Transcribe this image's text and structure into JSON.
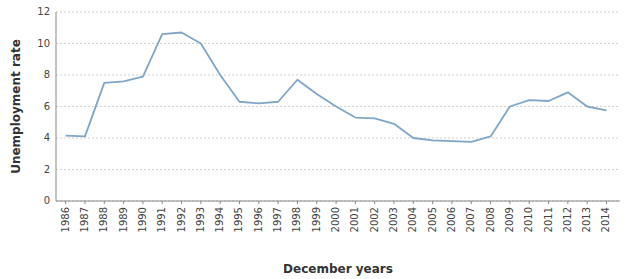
{
  "chart_data": {
    "type": "line",
    "xlabel": "December years",
    "ylabel": "Unemployment rate",
    "x": [
      1986,
      1987,
      1988,
      1989,
      1990,
      1991,
      1992,
      1993,
      1994,
      1995,
      1996,
      1997,
      1998,
      1999,
      2000,
      2001,
      2002,
      2003,
      2004,
      2005,
      2006,
      2007,
      2008,
      2009,
      2010,
      2011,
      2012,
      2013,
      2014
    ],
    "values": [
      4.15,
      4.1,
      7.5,
      7.6,
      7.9,
      10.6,
      10.7,
      10.0,
      8.0,
      6.3,
      6.2,
      6.3,
      7.7,
      6.8,
      6.0,
      5.3,
      5.25,
      4.9,
      4.0,
      3.85,
      3.8,
      3.75,
      4.1,
      6.0,
      6.4,
      6.35,
      6.9,
      6.0,
      5.75
    ],
    "color": "#7ea6c8",
    "xlim": [
      1985.5,
      2014.7
    ],
    "xticks": [
      1986,
      1987,
      1988,
      1989,
      1990,
      1991,
      1992,
      1993,
      1994,
      1995,
      1996,
      1997,
      1998,
      1999,
      2000,
      2001,
      2002,
      2003,
      2004,
      2005,
      2006,
      2007,
      2008,
      2009,
      2010,
      2011,
      2012,
      2013,
      2014
    ],
    "ylim": [
      0,
      12
    ],
    "yticks": [
      0,
      2,
      4,
      6,
      8,
      10,
      12
    ],
    "grid": true
  }
}
